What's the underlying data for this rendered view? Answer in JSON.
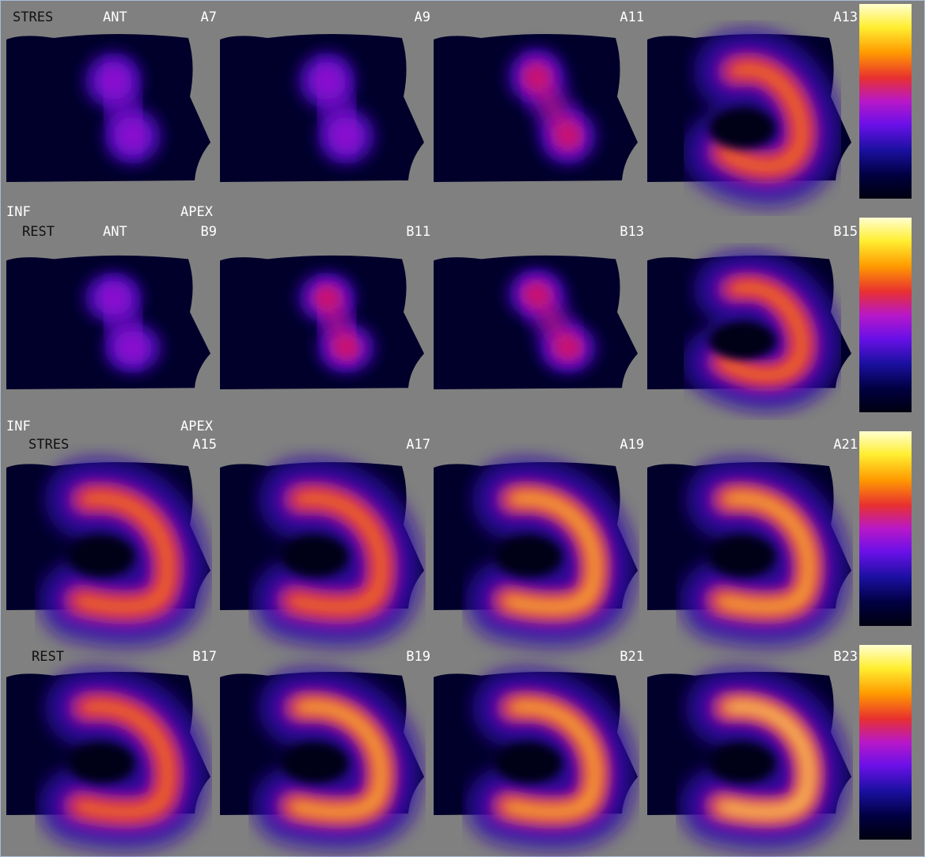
{
  "rows": [
    {
      "view": "STRES",
      "orientation": "ANT",
      "slices": [
        "A7",
        "A9",
        "A11",
        "A13"
      ],
      "footer": [
        "INF",
        "APEX"
      ]
    },
    {
      "view": "REST",
      "orientation": "ANT",
      "slices": [
        "B9",
        "B11",
        "B13",
        "B15"
      ],
      "footer": [
        "INF",
        "APEX"
      ]
    },
    {
      "view": "STRES",
      "slices": [
        "A15",
        "A17",
        "A19",
        "A21"
      ]
    },
    {
      "view": "REST",
      "slices": [
        "B17",
        "B19",
        "B21",
        "B23"
      ]
    }
  ]
}
